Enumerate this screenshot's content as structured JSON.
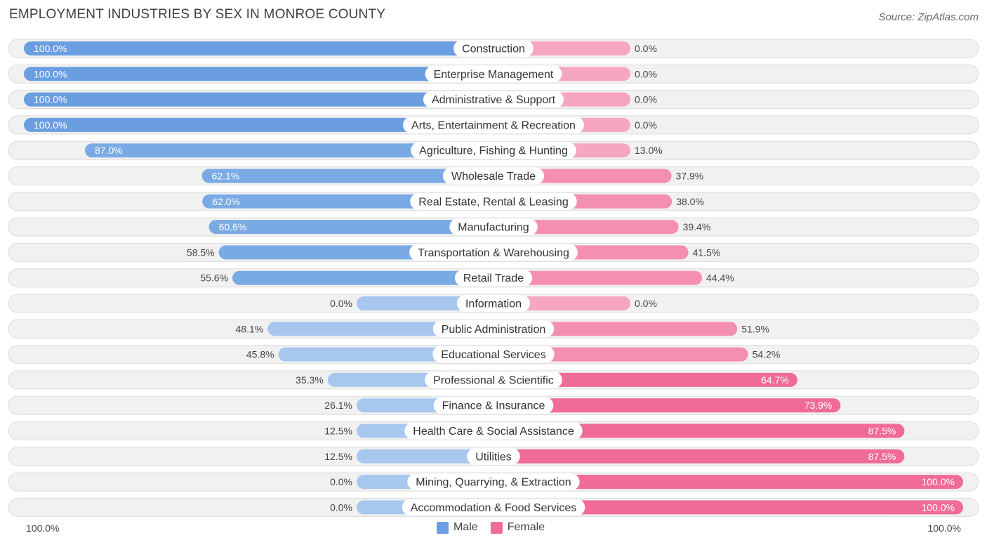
{
  "colors": {
    "male": "#6a9ee0",
    "male_light": "#a8c7ee",
    "female": "#f06b96",
    "female_light": "#f6a6c1",
    "track": "#f1f1f1",
    "track_border": "#dcdcdc"
  },
  "chart_data": {
    "type": "bar",
    "title": "EMPLOYMENT INDUSTRIES BY SEX IN MONROE COUNTY",
    "source": "Source: ZipAtlas.com",
    "axis_left_label": "100.0%",
    "axis_right_label": "100.0%",
    "legend": [
      {
        "name": "Male",
        "color": "#6a9ee0"
      },
      {
        "name": "Female",
        "color": "#f06b96"
      }
    ],
    "categories": [
      "Construction",
      "Enterprise Management",
      "Administrative & Support",
      "Arts, Entertainment & Recreation",
      "Agriculture, Fishing & Hunting",
      "Wholesale Trade",
      "Real Estate, Rental & Leasing",
      "Manufacturing",
      "Transportation & Warehousing",
      "Retail Trade",
      "Information",
      "Public Administration",
      "Educational Services",
      "Professional & Scientific",
      "Finance & Insurance",
      "Health Care & Social Assistance",
      "Utilities",
      "Mining, Quarrying, & Extraction",
      "Accommodation & Food Services"
    ],
    "series": [
      {
        "name": "Male",
        "values": [
          100.0,
          100.0,
          100.0,
          100.0,
          87.0,
          62.1,
          62.0,
          60.6,
          58.5,
          55.6,
          0.0,
          48.1,
          45.8,
          35.3,
          26.1,
          12.5,
          12.5,
          0.0,
          0.0
        ],
        "labels": [
          "100.0%",
          "100.0%",
          "100.0%",
          "100.0%",
          "87.0%",
          "62.1%",
          "62.0%",
          "60.6%",
          "58.5%",
          "55.6%",
          "0.0%",
          "48.1%",
          "45.8%",
          "35.3%",
          "26.1%",
          "12.5%",
          "12.5%",
          "0.0%",
          "0.0%"
        ]
      },
      {
        "name": "Female",
        "values": [
          0.0,
          0.0,
          0.0,
          0.0,
          13.0,
          37.9,
          38.0,
          39.4,
          41.5,
          44.4,
          0.0,
          51.9,
          54.2,
          64.7,
          73.9,
          87.5,
          87.5,
          100.0,
          100.0
        ],
        "labels": [
          "0.0%",
          "0.0%",
          "0.0%",
          "0.0%",
          "13.0%",
          "37.9%",
          "38.0%",
          "39.4%",
          "41.5%",
          "44.4%",
          "0.0%",
          "51.9%",
          "54.2%",
          "64.7%",
          "73.9%",
          "87.5%",
          "87.5%",
          "100.0%",
          "100.0%"
        ]
      }
    ],
    "xlim": [
      -100,
      100
    ]
  }
}
